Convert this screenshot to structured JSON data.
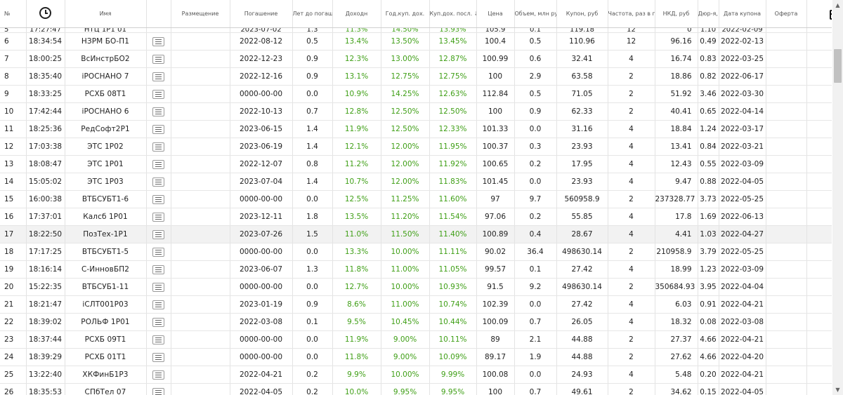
{
  "columns": [
    "№",
    "",
    "Имя",
    "",
    "Размещение",
    "Погашение",
    "Лет до погаш.",
    "Доходн",
    "Год.куп. дох.",
    "Куп.дох. посл. ↓",
    "Цена",
    "Объем, млн руб",
    "Купон, руб",
    "Частота, раз в год",
    "НКД, руб",
    "Дюр-я, лет",
    "Дата купона",
    "Оферта",
    ""
  ],
  "partial_row": [
    "5",
    "17:27:47",
    "НТЦ 1Р1 01",
    "",
    "",
    "2023-07-02",
    "1.3",
    "11.3%",
    "14.50%",
    "13.93%",
    "105.9",
    "0.1",
    "119.18",
    "12",
    "0",
    "1.10",
    "2022-02-09",
    "",
    "+"
  ],
  "rows": [
    [
      "6",
      "18:34:54",
      "НЗРМ БО-П1",
      "2022-08-12",
      "0.5",
      "13.4%",
      "13.50%",
      "13.45%",
      "100.4",
      "0.5",
      "110.96",
      "12",
      "96.16",
      "0.49",
      "2022-02-13"
    ],
    [
      "7",
      "18:00:25",
      "ВсИнстрБО2",
      "2022-12-23",
      "0.9",
      "12.3%",
      "13.00%",
      "12.87%",
      "100.99",
      "0.6",
      "32.41",
      "4",
      "16.74",
      "0.83",
      "2022-03-25"
    ],
    [
      "8",
      "18:35:40",
      "iРОСНАНО 7",
      "2022-12-16",
      "0.9",
      "13.1%",
      "12.75%",
      "12.75%",
      "100",
      "2.9",
      "63.58",
      "2",
      "18.86",
      "0.82",
      "2022-06-17"
    ],
    [
      "9",
      "18:33:25",
      "РСХБ 08Т1",
      "0000-00-00",
      "0.0",
      "10.9%",
      "14.25%",
      "12.63%",
      "112.84",
      "0.5",
      "71.05",
      "2",
      "51.92",
      "3.46",
      "2022-03-30"
    ],
    [
      "10",
      "17:42:44",
      "iРОСНАНО 6",
      "2022-10-13",
      "0.7",
      "12.8%",
      "12.50%",
      "12.50%",
      "100",
      "0.9",
      "62.33",
      "2",
      "40.41",
      "0.65",
      "2022-04-14"
    ],
    [
      "11",
      "18:25:36",
      "РедСофт2Р1",
      "2023-06-15",
      "1.4",
      "11.9%",
      "12.50%",
      "12.33%",
      "101.33",
      "0.0",
      "31.16",
      "4",
      "18.84",
      "1.24",
      "2022-03-17"
    ],
    [
      "12",
      "17:03:38",
      "ЭТС 1Р02",
      "2023-06-19",
      "1.4",
      "12.1%",
      "12.00%",
      "11.95%",
      "100.37",
      "0.3",
      "23.93",
      "4",
      "13.41",
      "0.84",
      "2022-03-21"
    ],
    [
      "13",
      "18:08:47",
      "ЭТС 1Р01",
      "2022-12-07",
      "0.8",
      "11.2%",
      "12.00%",
      "11.92%",
      "100.65",
      "0.2",
      "17.95",
      "4",
      "12.43",
      "0.55",
      "2022-03-09"
    ],
    [
      "14",
      "15:05:02",
      "ЭТС 1Р03",
      "2023-07-04",
      "1.4",
      "10.7%",
      "12.00%",
      "11.83%",
      "101.45",
      "0.0",
      "23.93",
      "4",
      "9.47",
      "0.88",
      "2022-04-05"
    ],
    [
      "15",
      "16:00:38",
      "ВТБСУБТ1-6",
      "0000-00-00",
      "0.0",
      "12.5%",
      "11.25%",
      "11.60%",
      "97",
      "9.7",
      "560958.9",
      "2",
      "237328.77",
      "3.73",
      "2022-05-25"
    ],
    [
      "16",
      "17:37:01",
      "Калсб 1Р01",
      "2023-12-11",
      "1.8",
      "13.5%",
      "11.20%",
      "11.54%",
      "97.06",
      "0.2",
      "55.85",
      "4",
      "17.8",
      "1.69",
      "2022-06-13"
    ],
    [
      "17",
      "18:22:50",
      "ПозТех-1Р1",
      "2023-07-26",
      "1.5",
      "11.0%",
      "11.50%",
      "11.40%",
      "100.89",
      "0.4",
      "28.67",
      "4",
      "4.41",
      "1.03",
      "2022-04-27"
    ],
    [
      "18",
      "17:17:25",
      "ВТБСУБТ1-5",
      "0000-00-00",
      "0.0",
      "13.3%",
      "10.00%",
      "11.11%",
      "90.02",
      "36.4",
      "498630.14",
      "2",
      "210958.9",
      "3.79",
      "2022-05-25"
    ],
    [
      "19",
      "18:16:14",
      "С-ИнновБП2",
      "2023-06-07",
      "1.3",
      "11.8%",
      "11.00%",
      "11.05%",
      "99.57",
      "0.1",
      "27.42",
      "4",
      "18.99",
      "1.23",
      "2022-03-09"
    ],
    [
      "20",
      "15:22:35",
      "ВТБСУБ1-11",
      "0000-00-00",
      "0.0",
      "12.7%",
      "10.00%",
      "10.93%",
      "91.5",
      "9.2",
      "498630.14",
      "2",
      "350684.93",
      "3.95",
      "2022-04-04"
    ],
    [
      "21",
      "18:21:47",
      "iСЛТ001Р03",
      "2023-01-19",
      "0.9",
      "8.6%",
      "11.00%",
      "10.74%",
      "102.39",
      "0.0",
      "27.42",
      "4",
      "6.03",
      "0.91",
      "2022-04-21"
    ],
    [
      "22",
      "18:39:02",
      "РОЛЬФ 1Р01",
      "2022-03-08",
      "0.1",
      "9.5%",
      "10.45%",
      "10.44%",
      "100.09",
      "0.7",
      "26.05",
      "4",
      "18.32",
      "0.08",
      "2022-03-08"
    ],
    [
      "23",
      "18:37:44",
      "РСХБ 09Т1",
      "0000-00-00",
      "0.0",
      "11.9%",
      "9.00%",
      "10.11%",
      "89",
      "2.1",
      "44.88",
      "2",
      "27.37",
      "4.66",
      "2022-04-21"
    ],
    [
      "24",
      "18:39:29",
      "РСХБ 01Т1",
      "0000-00-00",
      "0.0",
      "11.8%",
      "9.00%",
      "10.09%",
      "89.17",
      "1.9",
      "44.88",
      "2",
      "27.62",
      "4.66",
      "2022-04-20"
    ],
    [
      "25",
      "13:22:40",
      "ХКФинБ1Р3",
      "2022-04-21",
      "0.2",
      "9.9%",
      "10.00%",
      "9.99%",
      "100.08",
      "0.0",
      "24.93",
      "4",
      "5.48",
      "0.20",
      "2022-04-21"
    ],
    [
      "26",
      "18:35:53",
      "СПбТел 07",
      "2022-04-05",
      "0.2",
      "10.0%",
      "9.95%",
      "9.95%",
      "100",
      "0.7",
      "49.61",
      "2",
      "34.62",
      "0.15",
      "2022-04-05"
    ]
  ],
  "add_label": "+",
  "icons": {
    "time_header": "clock-icon",
    "portfolio_header": "briefcase-icon",
    "row_doc": "document-icon",
    "add": "plus-icon"
  },
  "colors": {
    "green": "#3f9f16",
    "plus": "#2e9a1b",
    "hover_row": "#f2f2f2"
  }
}
